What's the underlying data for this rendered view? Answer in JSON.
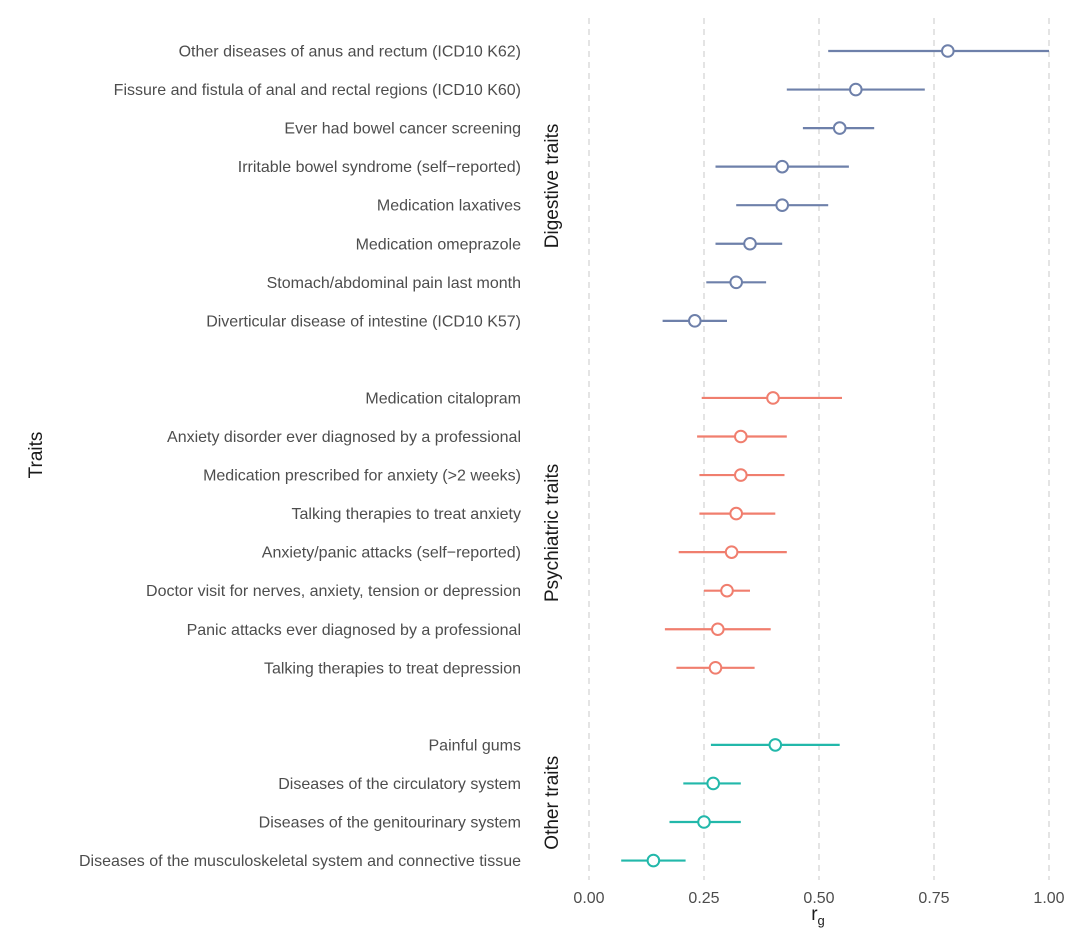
{
  "chart_data": {
    "type": "forest",
    "xlabel_main": "r",
    "xlabel_sub": "g",
    "ylabel": "Traits",
    "xlim": [
      0,
      1
    ],
    "xticks": [
      0,
      0.25,
      0.5,
      0.75,
      1
    ],
    "xtick_labels": [
      "0.00",
      "0.25",
      "0.50",
      "0.75",
      "1.00"
    ],
    "grid": "vertical dashed",
    "groups": [
      {
        "name": "Digestive traits",
        "color": "#6e80aa",
        "traits": [
          {
            "label": "Other diseases of anus and rectum (ICD10 K62)",
            "estimate": 0.78,
            "lower": 0.52,
            "upper": 1.0
          },
          {
            "label": "Fissure and fistula of anal and rectal regions (ICD10 K60)",
            "estimate": 0.58,
            "lower": 0.43,
            "upper": 0.73
          },
          {
            "label": "Ever had bowel cancer screening",
            "estimate": 0.545,
            "lower": 0.465,
            "upper": 0.62
          },
          {
            "label": "Irritable bowel syndrome (self−reported)",
            "estimate": 0.42,
            "lower": 0.275,
            "upper": 0.565
          },
          {
            "label": "Medication laxatives",
            "estimate": 0.42,
            "lower": 0.32,
            "upper": 0.52
          },
          {
            "label": "Medication omeprazole",
            "estimate": 0.35,
            "lower": 0.275,
            "upper": 0.42
          },
          {
            "label": "Stomach/abdominal pain last month",
            "estimate": 0.32,
            "lower": 0.255,
            "upper": 0.385
          },
          {
            "label": "Diverticular disease of intestine (ICD10 K57)",
            "estimate": 0.23,
            "lower": 0.16,
            "upper": 0.3
          }
        ]
      },
      {
        "name": "Psychiatric traits",
        "color": "#f07e6e",
        "traits": [
          {
            "label": "Medication citalopram",
            "estimate": 0.4,
            "lower": 0.245,
            "upper": 0.55
          },
          {
            "label": "Anxiety disorder ever diagnosed by a professional",
            "estimate": 0.33,
            "lower": 0.235,
            "upper": 0.43
          },
          {
            "label": "Medication prescribed for anxiety (>2 weeks)",
            "estimate": 0.33,
            "lower": 0.24,
            "upper": 0.425
          },
          {
            "label": "Talking therapies to treat anxiety",
            "estimate": 0.32,
            "lower": 0.24,
            "upper": 0.405
          },
          {
            "label": "Anxiety/panic attacks (self−reported)",
            "estimate": 0.31,
            "lower": 0.195,
            "upper": 0.43
          },
          {
            "label": "Doctor visit for nerves, anxiety, tension or depression",
            "estimate": 0.3,
            "lower": 0.25,
            "upper": 0.35
          },
          {
            "label": "Panic attacks ever diagnosed by a professional",
            "estimate": 0.28,
            "lower": 0.165,
            "upper": 0.395
          },
          {
            "label": "Talking therapies to treat depression",
            "estimate": 0.275,
            "lower": 0.19,
            "upper": 0.36
          }
        ]
      },
      {
        "name": "Other traits",
        "color": "#22b8aa",
        "traits": [
          {
            "label": "Painful gums",
            "estimate": 0.405,
            "lower": 0.265,
            "upper": 0.545
          },
          {
            "label": "Diseases of the circulatory system",
            "estimate": 0.27,
            "lower": 0.205,
            "upper": 0.33
          },
          {
            "label": "Diseases of the genitourinary system",
            "estimate": 0.25,
            "lower": 0.175,
            "upper": 0.33
          },
          {
            "label": "Diseases of the musculoskeletal system and connective tissue",
            "estimate": 0.14,
            "lower": 0.07,
            "upper": 0.21
          }
        ]
      }
    ]
  }
}
